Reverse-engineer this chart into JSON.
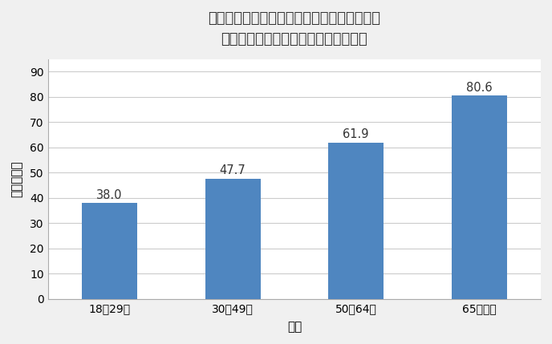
{
  "title_line1": "図１　年齢別に見た新型コロナのワクチンを",
  "title_line2": "接種するつもりと回答した人々の割合",
  "categories": [
    "18～29歳",
    "30～49歳",
    "50～64歳",
    "65歳以上"
  ],
  "values": [
    38.0,
    47.7,
    61.9,
    80.6
  ],
  "bar_color": "#4f86c0",
  "xlabel": "年齢",
  "ylabel": "割合（％）",
  "ylim": [
    0,
    95
  ],
  "yticks": [
    0,
    10,
    20,
    30,
    40,
    50,
    60,
    70,
    80,
    90
  ],
  "background_color": "#f0f0f0",
  "plot_background_color": "#ffffff",
  "grid_color": "#cccccc",
  "title_fontsize": 13,
  "axis_label_fontsize": 11,
  "tick_fontsize": 10,
  "bar_label_fontsize": 10.5,
  "bar_width": 0.45
}
